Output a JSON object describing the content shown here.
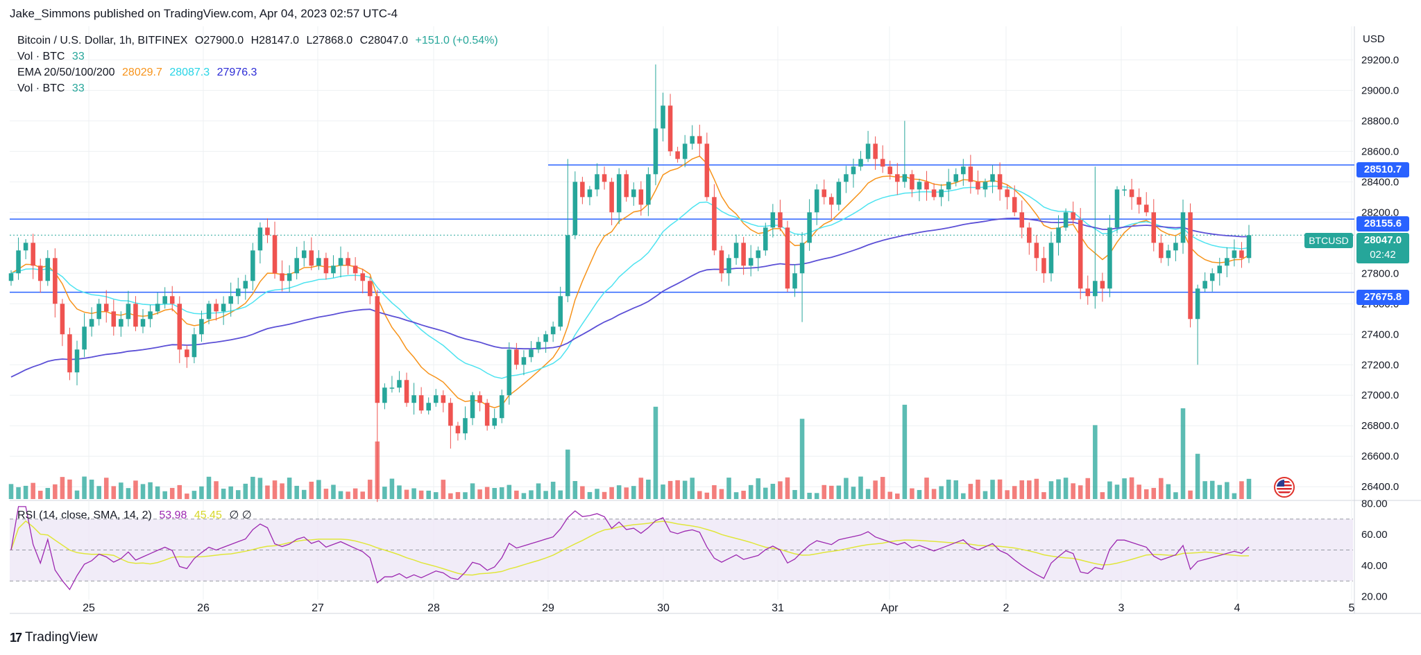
{
  "publisher_line": "Jake_Simmons published on TradingView.com, Apr 04, 2023 02:57 UTC-4",
  "footer_brand": "TradingView",
  "legend": {
    "symbol": "Bitcoin / U.S. Dollar, 1h, BITFINEX",
    "open": "O27900.0",
    "high": "H28147.0",
    "low": "L27868.0",
    "close": "C28047.0",
    "change": "+151.0 (+0.54%)",
    "vol1_label": "Vol · BTC",
    "vol1_value": "33",
    "ema_label": "EMA 20/50/100/200",
    "ema20": "28029.7",
    "ema50": "28087.3",
    "ema100": "27976.3",
    "vol2_label": "Vol · BTC",
    "vol2_value": "33",
    "rsi_label": "RSI (14, close, SMA, 14, 2)",
    "rsi_value": "53.98",
    "rsi_sma": "45.45",
    "rsi_extra": "∅ ∅"
  },
  "tags": {
    "r1": "28510.7",
    "r2": "28155.6",
    "s1": "27675.8",
    "btc_label": "BTCUSD",
    "btc_price": "28047.0",
    "btc_countdown": "02:42"
  },
  "colors": {
    "up": "#26a69a",
    "down": "#ef5350",
    "ema20": "#f7931a",
    "ema50": "#4de3f0",
    "ema200": "#5b4fd6",
    "hline": "#2962ff",
    "rsi": "#9c27b0",
    "rsi_sma": "#e0e63a"
  },
  "chart_data": [
    {
      "type": "candlestick",
      "currency_label": "USD",
      "x_tick_labels": [
        "25",
        "26",
        "27",
        "28",
        "29",
        "30",
        "31",
        "Apr",
        "2",
        "3",
        "4",
        "5"
      ],
      "y_ticks": [
        26400,
        26600,
        26800,
        27000,
        27200,
        27400,
        27600,
        27800,
        28000,
        28200,
        28400,
        28600,
        28800,
        29000,
        29200
      ],
      "ylim": [
        26310,
        29420
      ],
      "horizontal_levels": [
        28510.7,
        28155.6,
        27675.8
      ],
      "closes": [
        27800,
        27950,
        28000,
        27850,
        27750,
        27900,
        27600,
        27400,
        27150,
        27300,
        27450,
        27500,
        27600,
        27550,
        27450,
        27500,
        27600,
        27450,
        27500,
        27550,
        27600,
        27650,
        27600,
        27300,
        27250,
        27400,
        27500,
        27600,
        27550,
        27600,
        27650,
        27700,
        27750,
        27950,
        28100,
        28050,
        27800,
        27750,
        27800,
        27900,
        27950,
        27850,
        27900,
        27800,
        27850,
        27900,
        27850,
        27800,
        27750,
        27650,
        26950,
        27050,
        27050,
        27100,
        26950,
        27000,
        26900,
        26950,
        27000,
        26950,
        26800,
        26750,
        26850,
        27000,
        26950,
        26800,
        26850,
        27000,
        27300,
        27200,
        27250,
        27300,
        27350,
        27400,
        27450,
        27650,
        28050,
        28400,
        28300,
        28350,
        28450,
        28400,
        28200,
        28450,
        28300,
        28350,
        28250,
        28450,
        28750,
        28900,
        28600,
        28550,
        28650,
        28700,
        28650,
        28300,
        27950,
        27800,
        27900,
        28000,
        27850,
        27900,
        27950,
        28100,
        28200,
        28100,
        27700,
        27800,
        28000,
        28200,
        28350,
        28300,
        28250,
        28400,
        28450,
        28500,
        28550,
        28650,
        28550,
        28500,
        28450,
        28400,
        28450,
        28350,
        28400,
        28350,
        28300,
        28350,
        28400,
        28450,
        28500,
        28400,
        28350,
        28400,
        28450,
        28350,
        28300,
        28200,
        28100,
        28000,
        27900,
        27800,
        28000,
        28100,
        28200,
        28150,
        27700,
        27650,
        27750,
        27700,
        28100,
        28350,
        28350,
        28300,
        28250,
        28200,
        28000,
        27900,
        27950,
        28000,
        28200,
        27500,
        27700,
        27750,
        27800,
        27850,
        27900,
        27950,
        27900,
        28050
      ],
      "volume_max": 135,
      "rsi_ylim": [
        18,
        82
      ],
      "rsi_ticks": [
        20,
        40,
        60,
        80
      ],
      "rsi_band": [
        30,
        70
      ]
    }
  ]
}
